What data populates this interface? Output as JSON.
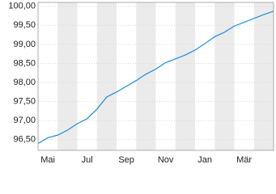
{
  "chart_data": {
    "type": "line",
    "categories": [
      null,
      "Mai",
      null,
      null,
      null,
      "Jul",
      null,
      null,
      null,
      "Sep",
      null,
      null,
      null,
      "Nov",
      null,
      null,
      null,
      "Jan",
      null,
      null,
      null,
      "Mär",
      null,
      null,
      null
    ],
    "series": [
      {
        "color": "#1a8fd8",
        "values": [
          96.4,
          96.55,
          96.62,
          96.75,
          96.92,
          97.05,
          97.3,
          97.62,
          97.75,
          97.9,
          98.05,
          98.22,
          98.35,
          98.52,
          98.62,
          98.72,
          98.85,
          99.02,
          99.2,
          99.32,
          99.48,
          99.58,
          99.68,
          99.78,
          99.87
        ]
      }
    ],
    "ylim": [
      96.22,
      100.1
    ],
    "yticks": [
      {
        "value": 96.5,
        "label": "96,50"
      },
      {
        "value": 97,
        "label": "97,00"
      },
      {
        "value": 97.5,
        "label": "97,50"
      },
      {
        "value": 98,
        "label": "98,00"
      },
      {
        "value": 98.5,
        "label": "98,50"
      },
      {
        "value": 99,
        "label": "99,00"
      },
      {
        "value": 99.5,
        "label": "99,50"
      },
      {
        "value": 100,
        "label": "100,00"
      }
    ],
    "grid": true
  }
}
